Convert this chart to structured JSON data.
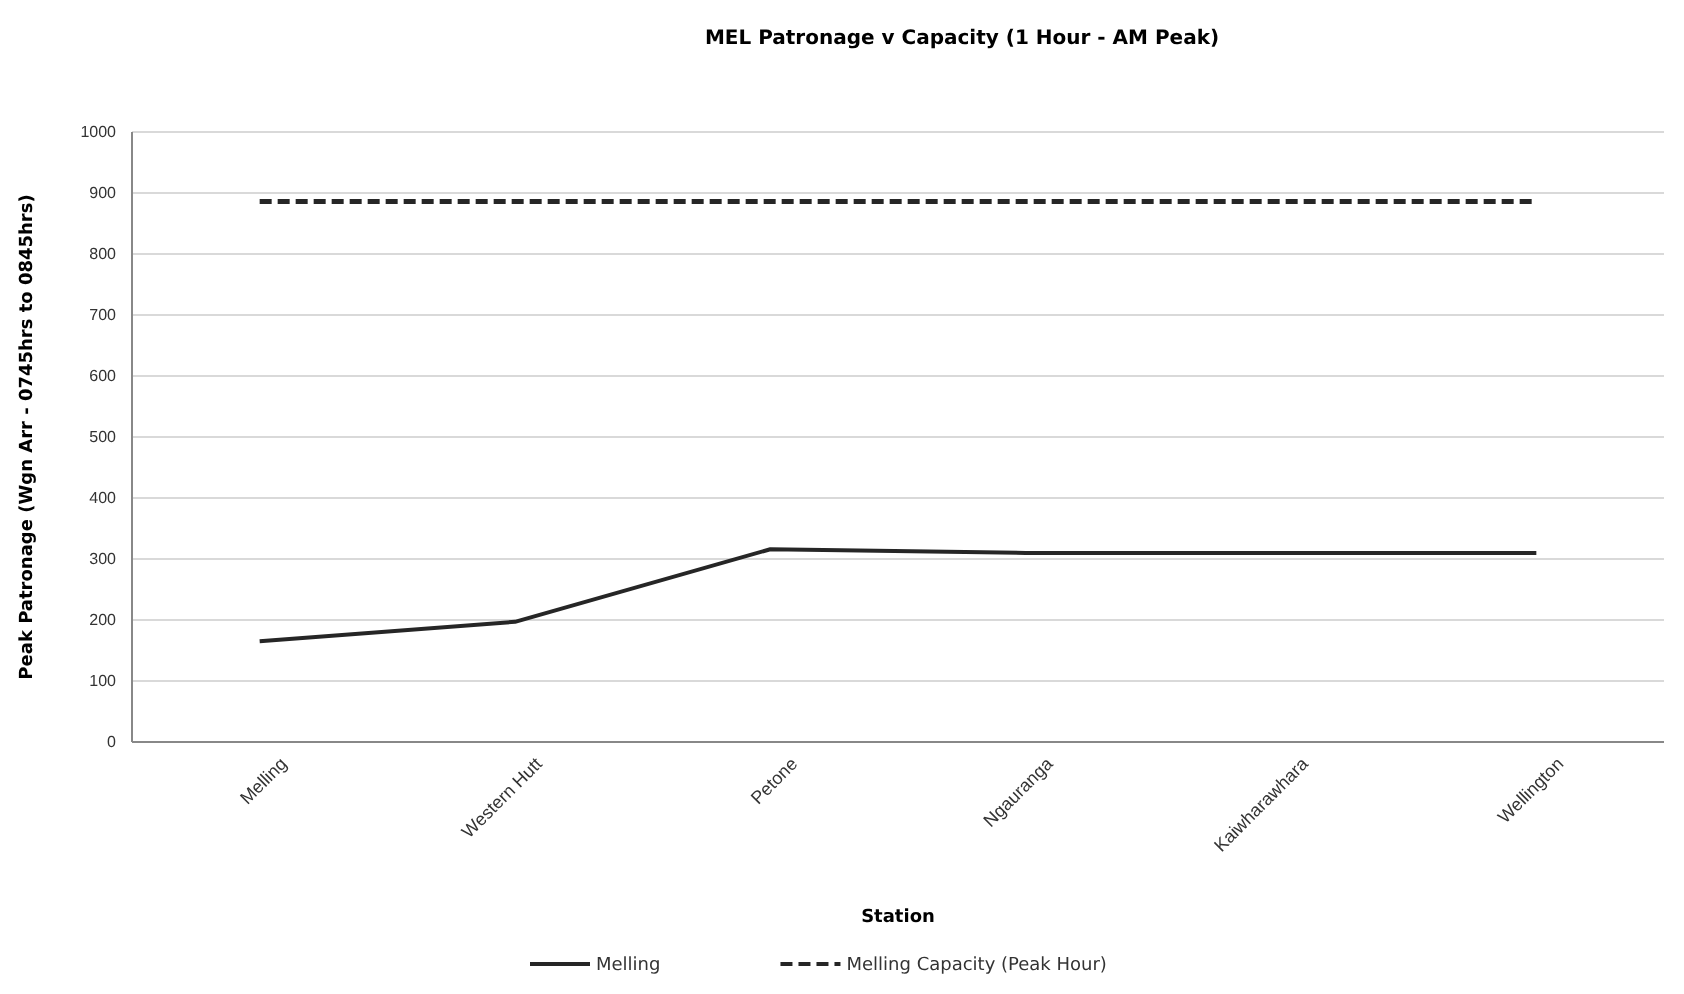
{
  "chart_data": {
    "type": "line",
    "title": "MEL Patronage v Capacity (1 Hour - AM Peak)",
    "xlabel": "Station",
    "ylabel": "Peak Patronage (Wgn Arr - 0745hrs to 0845hrs)",
    "categories": [
      "Melling",
      "Western Hutt",
      "Petone",
      "Ngauranga",
      "Kaiwharawhara",
      "Wellington"
    ],
    "series": [
      {
        "name": "Melling",
        "color": "#262626",
        "line_style": "solid",
        "values": [
          165,
          197,
          316,
          310,
          310,
          310
        ]
      },
      {
        "name": "Melling Capacity (Peak Hour)",
        "color": "#262626",
        "line_style": "dashed",
        "values": [
          886,
          886,
          886,
          886,
          886,
          886
        ]
      }
    ],
    "ylim": [
      0,
      1000
    ],
    "yticks": [
      0,
      100,
      200,
      300,
      400,
      500,
      600,
      700,
      800,
      900,
      1000
    ],
    "grid": "y",
    "legend": "bottom",
    "marker": "none"
  }
}
